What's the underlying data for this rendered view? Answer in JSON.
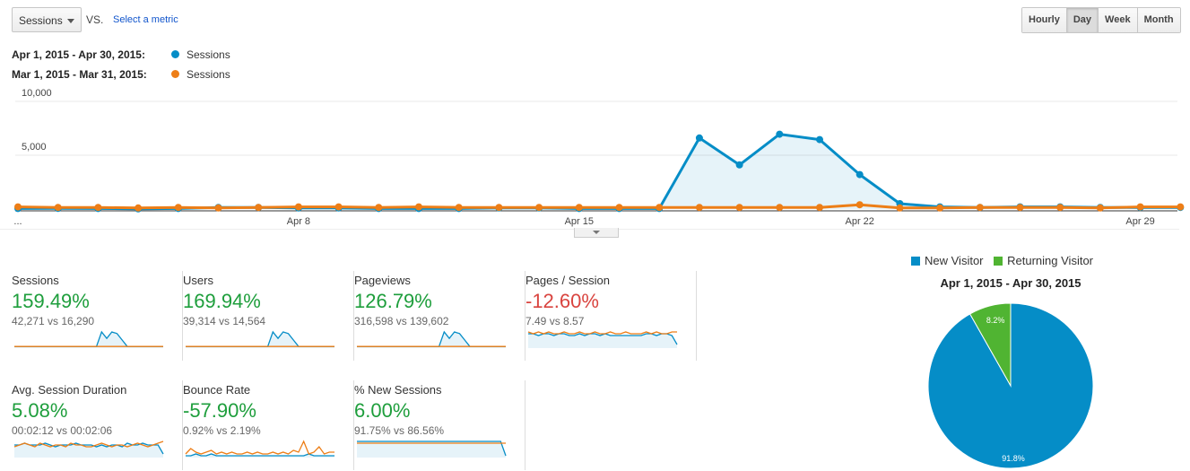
{
  "toolbar": {
    "metric_selected": "Sessions",
    "vs_label": "VS.",
    "select_metric_label": "Select a metric",
    "range_buttons": [
      {
        "label": "Hourly",
        "active": false
      },
      {
        "label": "Day",
        "active": true
      },
      {
        "label": "Week",
        "active": false
      },
      {
        "label": "Month",
        "active": false
      }
    ]
  },
  "legend": [
    {
      "date_range": "Apr 1, 2015 - Apr 30, 2015:",
      "metric": "Sessions",
      "color": "#058dc7"
    },
    {
      "date_range": "Mar 1, 2015 - Mar 31, 2015:",
      "metric": "Sessions",
      "color": "#ed7e17"
    }
  ],
  "chart_data": [
    {
      "type": "line",
      "y_ticks": [
        "10,000",
        "5,000"
      ],
      "y_tick_values": [
        10000,
        5000
      ],
      "ylim": [
        0,
        10000
      ],
      "x_tick_labels": [
        "...",
        "Apr 8",
        "Apr 15",
        "Apr 22",
        "Apr 29"
      ],
      "x_tick_days": [
        0,
        8,
        15,
        22,
        29
      ],
      "grid": true,
      "x_days": [
        1,
        2,
        3,
        4,
        5,
        6,
        7,
        8,
        9,
        10,
        11,
        12,
        13,
        14,
        15,
        16,
        17,
        18,
        19,
        20,
        21,
        22,
        23,
        24,
        25,
        26,
        27,
        28,
        29,
        30
      ],
      "series": [
        {
          "color": "#058dc7",
          "area": true,
          "values": [
            50,
            60,
            50,
            20,
            50,
            150,
            150,
            100,
            100,
            50,
            50,
            50,
            100,
            100,
            50,
            50,
            50,
            6600,
            4100,
            6950,
            6450,
            3200,
            500,
            200,
            150,
            200,
            200,
            150,
            150,
            150
          ]
        },
        {
          "color": "#ed7e17",
          "area": false,
          "values": [
            200,
            150,
            150,
            100,
            150,
            100,
            150,
            200,
            200,
            150,
            200,
            150,
            150,
            150,
            150,
            150,
            150,
            150,
            150,
            150,
            150,
            400,
            100,
            100,
            150,
            150,
            150,
            100,
            200,
            200
          ]
        }
      ]
    },
    {
      "type": "pie",
      "title": "Apr 1, 2015 - Apr 30, 2015",
      "legend_position": "top",
      "slices": [
        {
          "name": "New Visitor",
          "value": 91.8,
          "label": "91.8%",
          "color": "#058dc7"
        },
        {
          "name": "Returning Visitor",
          "value": 8.2,
          "label": "8.2%",
          "color": "#50b432"
        }
      ]
    }
  ],
  "scorecards": [
    {
      "name": "Sessions",
      "change": "159.49%",
      "trend": "pos",
      "comparison": "42,271 vs 16,290",
      "spark_blue": [
        1,
        1,
        1,
        1,
        1,
        1,
        1,
        1,
        1,
        1,
        1,
        1,
        1,
        1,
        1,
        1,
        1,
        10,
        6,
        10,
        9,
        5,
        1,
        1,
        1,
        1,
        1,
        1,
        1,
        1
      ],
      "spark_orange": [
        1,
        1,
        1,
        1,
        1,
        1,
        1,
        1,
        1,
        1,
        1,
        1,
        1,
        1,
        1,
        1,
        1,
        1,
        1,
        1,
        1,
        1,
        1,
        1,
        1,
        1,
        1,
        1,
        1,
        1
      ]
    },
    {
      "name": "Users",
      "change": "169.94%",
      "trend": "pos",
      "comparison": "39,314 vs 14,564",
      "spark_blue": [
        1,
        1,
        1,
        1,
        1,
        1,
        1,
        1,
        1,
        1,
        1,
        1,
        1,
        1,
        1,
        1,
        1,
        10,
        6,
        10,
        9,
        5,
        1,
        1,
        1,
        1,
        1,
        1,
        1,
        1
      ],
      "spark_orange": [
        1,
        1,
        1,
        1,
        1,
        1,
        1,
        1,
        1,
        1,
        1,
        1,
        1,
        1,
        1,
        1,
        1,
        1,
        1,
        1,
        1,
        1,
        1,
        1,
        1,
        1,
        1,
        1,
        1,
        1
      ]
    },
    {
      "name": "Pageviews",
      "change": "126.79%",
      "trend": "pos",
      "comparison": "316,598 vs 139,602",
      "spark_blue": [
        1,
        1,
        1,
        1,
        1,
        1,
        1,
        1,
        1,
        1,
        1,
        1,
        1,
        1,
        1,
        1,
        1,
        10,
        6,
        10,
        9,
        5,
        1,
        1,
        1,
        1,
        1,
        1,
        1,
        1
      ],
      "spark_orange": [
        1,
        1,
        1,
        1,
        1,
        1,
        1,
        1,
        1,
        1,
        1,
        1,
        1,
        1,
        1,
        1,
        1,
        1,
        1,
        1,
        1,
        1,
        1,
        1,
        1,
        1,
        1,
        1,
        1,
        1
      ]
    },
    {
      "name": "Pages / Session",
      "change": "-12.60%",
      "trend": "neg",
      "comparison": "7.49 vs 8.57",
      "spark_blue": [
        8,
        8,
        7,
        8,
        8,
        7,
        8,
        8,
        7,
        7,
        8,
        7,
        8,
        8,
        7,
        8,
        7,
        7,
        7,
        7,
        7,
        7,
        7,
        8,
        8,
        7,
        8,
        8,
        7,
        2
      ],
      "spark_orange": [
        9,
        8,
        9,
        8,
        9,
        8,
        8,
        9,
        8,
        8,
        9,
        8,
        8,
        9,
        8,
        8,
        9,
        8,
        8,
        9,
        8,
        8,
        8,
        9,
        8,
        9,
        8,
        8,
        9,
        9
      ]
    },
    {
      "name": "Avg. Session Duration",
      "change": "5.08%",
      "trend": "pos",
      "comparison": "00:02:12 vs 00:02:06",
      "spark_blue": [
        7,
        7,
        8,
        7,
        7,
        7,
        8,
        7,
        6,
        7,
        7,
        7,
        8,
        7,
        7,
        7,
        6,
        7,
        6,
        7,
        7,
        6,
        8,
        7,
        7,
        8,
        7,
        7,
        7,
        2
      ],
      "spark_orange": [
        6,
        7,
        8,
        7,
        6,
        8,
        7,
        6,
        7,
        7,
        6,
        8,
        7,
        7,
        6,
        6,
        7,
        8,
        7,
        6,
        7,
        7,
        6,
        7,
        8,
        7,
        6,
        7,
        8,
        9
      ]
    },
    {
      "name": "Bounce Rate",
      "change": "-57.90%",
      "trend": "pos",
      "comparison": "0.92% vs 2.19%",
      "spark_blue": [
        1,
        1,
        2,
        1,
        1,
        2,
        1,
        1,
        1,
        1,
        1,
        1,
        1,
        1,
        1,
        1,
        1,
        1,
        1,
        1,
        1,
        1,
        1,
        1,
        2,
        1,
        1,
        1,
        1,
        1
      ],
      "spark_orange": [
        2,
        5,
        3,
        2,
        3,
        4,
        2,
        3,
        2,
        3,
        2,
        2,
        3,
        2,
        3,
        2,
        2,
        3,
        2,
        3,
        2,
        4,
        3,
        9,
        2,
        3,
        6,
        2,
        3,
        3
      ]
    },
    {
      "name": "% New Sessions",
      "change": "6.00%",
      "trend": "pos",
      "comparison": "91.75% vs 86.56%",
      "spark_blue": [
        9,
        9,
        9,
        9,
        9,
        9,
        9,
        9,
        9,
        9,
        9,
        9,
        9,
        9,
        9,
        9,
        9,
        9,
        9,
        9,
        9,
        9,
        9,
        9,
        9,
        9,
        9,
        9,
        9,
        1
      ],
      "spark_orange": [
        8,
        8,
        8,
        8,
        8,
        8,
        8,
        8,
        8,
        8,
        8,
        8,
        8,
        8,
        8,
        8,
        8,
        8,
        8,
        8,
        8,
        8,
        8,
        8,
        8,
        8,
        8,
        8,
        8,
        8
      ]
    }
  ]
}
